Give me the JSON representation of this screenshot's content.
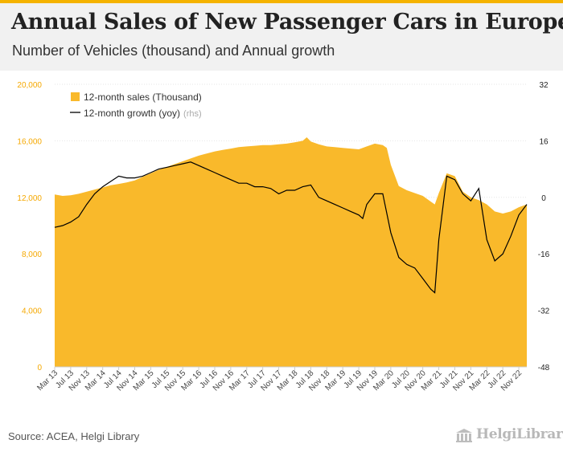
{
  "header": {
    "title": "Annual Sales of New Passenger Cars in Europe",
    "subtitle": "Number of Vehicles (thousand) and Annual growth"
  },
  "footer": {
    "source": "Source: ACEA, Helgi Library",
    "logo_text": "HelgiLibrary"
  },
  "colors": {
    "area": "#f9b92b",
    "line": "#000000",
    "accent": "#f5b300"
  },
  "chart_data": {
    "type": "area",
    "title": "Annual Sales of New Passenger Cars in Europe",
    "subtitle": "Number of Vehicles (thousand) and Annual growth",
    "x_tick_labels": [
      "Mar 13",
      "Jul 13",
      "Nov 13",
      "Mar 14",
      "Jul 14",
      "Nov 14",
      "Mar 15",
      "Jul 15",
      "Nov 15",
      "Mar 16",
      "Jul 16",
      "Nov 16",
      "Mar 17",
      "Jul 17",
      "Nov 17",
      "Mar 18",
      "Jul 18",
      "Nov 18",
      "Mar 19",
      "Jul 19",
      "Nov 19",
      "Mar 20",
      "Jul 20",
      "Nov 20",
      "Mar 21",
      "Jul 21",
      "Nov 21",
      "Mar 22",
      "Jul 22",
      "Nov 22"
    ],
    "y_left": {
      "ticks": [
        "0",
        "4,000",
        "8,000",
        "12,000",
        "16,000",
        "20,000"
      ],
      "range": [
        0,
        20000
      ]
    },
    "y_right": {
      "ticks": [
        "-48",
        "-32",
        "-16",
        "0",
        "16",
        "32"
      ],
      "range": [
        -48,
        32
      ]
    },
    "grid": true,
    "legend_position": "top-left",
    "series": [
      {
        "name": "12-month sales (Thousand)",
        "axis": "left",
        "type": "area",
        "points": [
          [
            "Mar 13",
            12200
          ],
          [
            "May 13",
            12100
          ],
          [
            "Jul 13",
            12150
          ],
          [
            "Sep 13",
            12250
          ],
          [
            "Nov 13",
            12400
          ],
          [
            "Jan 14",
            12550
          ],
          [
            "Mar 14",
            12700
          ],
          [
            "May 14",
            12850
          ],
          [
            "Jul 14",
            12950
          ],
          [
            "Sep 14",
            13050
          ],
          [
            "Nov 14",
            13200
          ],
          [
            "Jan 15",
            13450
          ],
          [
            "Mar 15",
            13700
          ],
          [
            "May 15",
            13950
          ],
          [
            "Jul 15",
            14150
          ],
          [
            "Sep 15",
            14350
          ],
          [
            "Nov 15",
            14550
          ],
          [
            "Jan 16",
            14750
          ],
          [
            "Mar 16",
            14950
          ],
          [
            "May 16",
            15100
          ],
          [
            "Jul 16",
            15250
          ],
          [
            "Sep 16",
            15350
          ],
          [
            "Nov 16",
            15450
          ],
          [
            "Jan 17",
            15550
          ],
          [
            "Mar 17",
            15600
          ],
          [
            "May 17",
            15650
          ],
          [
            "Jul 17",
            15700
          ],
          [
            "Sep 17",
            15700
          ],
          [
            "Nov 17",
            15750
          ],
          [
            "Jan 18",
            15800
          ],
          [
            "Mar 18",
            15900
          ],
          [
            "May 18",
            16000
          ],
          [
            "Jun 18",
            16250
          ],
          [
            "Jul 18",
            15950
          ],
          [
            "Sep 18",
            15750
          ],
          [
            "Nov 18",
            15600
          ],
          [
            "Jan 19",
            15550
          ],
          [
            "Mar 19",
            15500
          ],
          [
            "May 19",
            15450
          ],
          [
            "Jul 19",
            15400
          ],
          [
            "Sep 19",
            15600
          ],
          [
            "Nov 19",
            15800
          ],
          [
            "Jan 20",
            15700
          ],
          [
            "Feb 20",
            15500
          ],
          [
            "Mar 20",
            14300
          ],
          [
            "May 20",
            12800
          ],
          [
            "Jul 20",
            12500
          ],
          [
            "Sep 20",
            12300
          ],
          [
            "Nov 20",
            12100
          ],
          [
            "Jan 21",
            11700
          ],
          [
            "Feb 21",
            11500
          ],
          [
            "Mar 21",
            12300
          ],
          [
            "May 21",
            13700
          ],
          [
            "Jul 21",
            13500
          ],
          [
            "Sep 21",
            12400
          ],
          [
            "Nov 21",
            12000
          ],
          [
            "Jan 22",
            11800
          ],
          [
            "Mar 22",
            11500
          ],
          [
            "May 22",
            11000
          ],
          [
            "Jul 22",
            10850
          ],
          [
            "Sep 22",
            11000
          ],
          [
            "Nov 22",
            11300
          ],
          [
            "Jan 23",
            11500
          ]
        ]
      },
      {
        "name": "12-month growth (yoy)",
        "axis_label": "(rhs)",
        "axis": "right",
        "type": "line",
        "points": [
          [
            "Mar 13",
            -8.5
          ],
          [
            "May 13",
            -8
          ],
          [
            "Jul 13",
            -7
          ],
          [
            "Sep 13",
            -5.5
          ],
          [
            "Nov 13",
            -2
          ],
          [
            "Jan 14",
            1
          ],
          [
            "Mar 14",
            3
          ],
          [
            "May 14",
            4.5
          ],
          [
            "Jul 14",
            6
          ],
          [
            "Sep 14",
            5.5
          ],
          [
            "Nov 14",
            5.5
          ],
          [
            "Jan 15",
            6
          ],
          [
            "Mar 15",
            7
          ],
          [
            "May 15",
            8
          ],
          [
            "Jul 15",
            8.5
          ],
          [
            "Sep 15",
            9
          ],
          [
            "Nov 15",
            9.5
          ],
          [
            "Jan 16",
            10
          ],
          [
            "Mar 16",
            9
          ],
          [
            "May 16",
            8
          ],
          [
            "Jul 16",
            7
          ],
          [
            "Sep 16",
            6
          ],
          [
            "Nov 16",
            5
          ],
          [
            "Jan 17",
            4
          ],
          [
            "Mar 17",
            4
          ],
          [
            "May 17",
            3
          ],
          [
            "Jul 17",
            3
          ],
          [
            "Sep 17",
            2.5
          ],
          [
            "Nov 17",
            1
          ],
          [
            "Jan 18",
            2
          ],
          [
            "Mar 18",
            2
          ],
          [
            "May 18",
            3
          ],
          [
            "Jul 18",
            3.5
          ],
          [
            "Sep 18",
            0
          ],
          [
            "Nov 18",
            -1
          ],
          [
            "Jan 19",
            -2
          ],
          [
            "Mar 19",
            -3
          ],
          [
            "May 19",
            -4
          ],
          [
            "Jul 19",
            -5
          ],
          [
            "Aug 19",
            -6
          ],
          [
            "Sep 19",
            -2
          ],
          [
            "Nov 19",
            1
          ],
          [
            "Jan 20",
            1
          ],
          [
            "Mar 20",
            -10
          ],
          [
            "May 20",
            -17
          ],
          [
            "Jul 20",
            -19
          ],
          [
            "Sep 20",
            -20
          ],
          [
            "Nov 20",
            -23
          ],
          [
            "Jan 21",
            -26
          ],
          [
            "Feb 21",
            -27
          ],
          [
            "Mar 21",
            -12
          ],
          [
            "May 21",
            6
          ],
          [
            "Jul 21",
            5
          ],
          [
            "Sep 21",
            1
          ],
          [
            "Nov 21",
            -1
          ],
          [
            "Jan 22",
            2.5
          ],
          [
            "Mar 22",
            -12
          ],
          [
            "May 22",
            -18
          ],
          [
            "Jul 22",
            -16
          ],
          [
            "Sep 22",
            -11
          ],
          [
            "Nov 22",
            -5
          ],
          [
            "Jan 23",
            -2
          ]
        ]
      }
    ]
  }
}
